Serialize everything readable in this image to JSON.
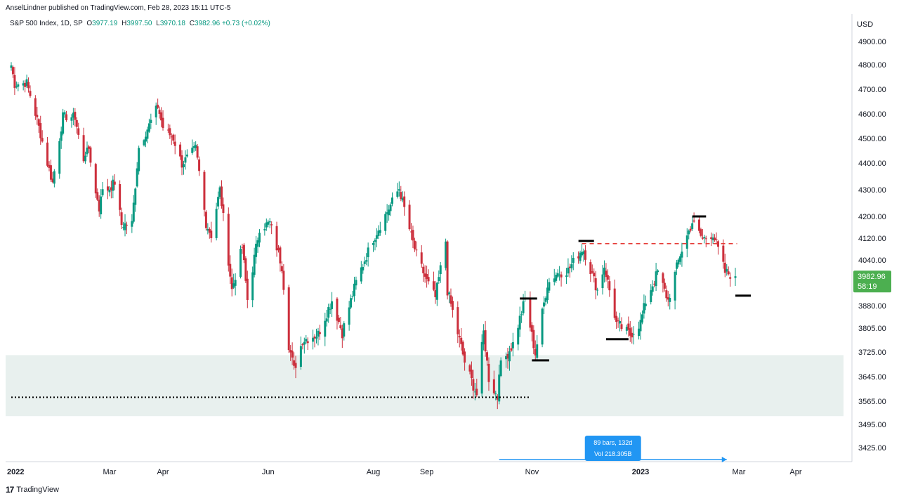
{
  "header": {
    "publisher_line": "AnselLindner published on TradingView.com, Feb 28, 2023 15:11 UTC-5"
  },
  "legend": {
    "symbol": "S&P 500 Index, 1D, SP",
    "o_label": "O",
    "o_value": "3977.19",
    "h_label": "H",
    "h_value": "3997.50",
    "l_label": "L",
    "l_value": "3970.18",
    "c_label": "C",
    "c_value": "3982.96",
    "change": "+0.73 (+0.02%)"
  },
  "footer": {
    "logo_text": "TradingView"
  },
  "colors": {
    "up": "#089981",
    "down": "#cc2f3c",
    "zone": "#e8f0ee",
    "price_tag": "#4caf50",
    "measure": "#2196f3",
    "dash_red": "#e53935"
  },
  "chart_data": {
    "type": "candlestick",
    "currency_label": "USD",
    "y_ticks": [
      "4900.00",
      "4800.00",
      "4700.00",
      "4600.00",
      "4500.00",
      "4400.00",
      "4300.00",
      "4200.00",
      "4120.00",
      "4040.00",
      "3880.00",
      "3805.00",
      "3725.00",
      "3645.00",
      "3565.00",
      "3495.00",
      "3425.00"
    ],
    "x_ticks": [
      {
        "label": "2022",
        "date": "2022-01-03",
        "bold": true
      },
      {
        "label": "Mar",
        "date": "2022-03-01"
      },
      {
        "label": "Apr",
        "date": "2022-04-01"
      },
      {
        "label": "Jun",
        "date": "2022-06-01"
      },
      {
        "label": "Aug",
        "date": "2022-08-01"
      },
      {
        "label": "Sep",
        "date": "2022-09-01"
      },
      {
        "label": "Nov",
        "date": "2022-11-01"
      },
      {
        "label": "2023",
        "date": "2023-01-03",
        "bold": true
      },
      {
        "label": "Mar",
        "date": "2023-03-01"
      },
      {
        "label": "Apr",
        "date": "2023-04-03"
      }
    ],
    "current_price": "3982.96",
    "countdown": "58:19",
    "measure": {
      "bars_text": "89 bars, 132d",
      "vol_text": "Vol 218.305B",
      "from": "2022-10-13",
      "to": "2023-02-22"
    },
    "support_zone": [
      3520,
      3715
    ],
    "dotted_level": {
      "value": 3578,
      "from": "2022-01-03",
      "to": "2022-10-31"
    },
    "red_dashed_level": {
      "value": 4100,
      "from": "2022-11-30",
      "to": "2023-02-28"
    },
    "marker_lines": [
      {
        "value": 3905,
        "from": "2022-10-25",
        "to": "2022-11-04"
      },
      {
        "value": 3698,
        "from": "2022-11-01",
        "to": "2022-11-11"
      },
      {
        "value": 4110,
        "from": "2022-11-28",
        "to": "2022-12-07"
      },
      {
        "value": 3768,
        "from": "2022-12-14",
        "to": "2022-12-27"
      },
      {
        "value": 4200,
        "from": "2023-02-02",
        "to": "2023-02-10"
      },
      {
        "value": 3915,
        "from": "2023-02-27",
        "to": "2023-03-08"
      }
    ],
    "close_path": [
      [
        "2022-01-03",
        4797
      ],
      [
        "2022-01-05",
        4720
      ],
      [
        "2022-01-12",
        4726
      ],
      [
        "2022-01-18",
        4575
      ],
      [
        "2022-01-24",
        4400
      ],
      [
        "2022-01-27",
        4326
      ],
      [
        "2022-02-02",
        4589
      ],
      [
        "2022-02-09",
        4587
      ],
      [
        "2022-02-14",
        4401
      ],
      [
        "2022-02-16",
        4475
      ],
      [
        "2022-02-23",
        4225
      ],
      [
        "2022-02-24",
        4288
      ],
      [
        "2022-03-01",
        4306
      ],
      [
        "2022-03-04",
        4329
      ],
      [
        "2022-03-08",
        4170
      ],
      [
        "2022-03-14",
        4173
      ],
      [
        "2022-03-18",
        4463
      ],
      [
        "2022-03-29",
        4631
      ],
      [
        "2022-04-01",
        4545
      ],
      [
        "2022-04-07",
        4500
      ],
      [
        "2022-04-12",
        4397
      ],
      [
        "2022-04-20",
        4460
      ],
      [
        "2022-04-26",
        4175
      ],
      [
        "2022-04-29",
        4131
      ],
      [
        "2022-05-04",
        4300
      ],
      [
        "2022-05-11",
        3935
      ],
      [
        "2022-05-17",
        4088
      ],
      [
        "2022-05-20",
        3901
      ],
      [
        "2022-05-27",
        4158
      ],
      [
        "2022-06-02",
        4176
      ],
      [
        "2022-06-09",
        4018
      ],
      [
        "2022-06-13",
        3750
      ],
      [
        "2022-06-16",
        3667
      ],
      [
        "2022-06-21",
        3765
      ],
      [
        "2022-06-30",
        3785
      ],
      [
        "2022-07-08",
        3899
      ],
      [
        "2022-07-14",
        3790
      ],
      [
        "2022-07-22",
        3962
      ],
      [
        "2022-08-01",
        4118
      ],
      [
        "2022-08-16",
        4305
      ],
      [
        "2022-08-23",
        4128
      ],
      [
        "2022-08-26",
        4058
      ],
      [
        "2022-09-01",
        3966
      ],
      [
        "2022-09-06",
        3908
      ],
      [
        "2022-09-12",
        4110
      ],
      [
        "2022-09-13",
        3932
      ],
      [
        "2022-09-23",
        3693
      ],
      [
        "2022-09-30",
        3586
      ],
      [
        "2022-10-04",
        3791
      ],
      [
        "2022-10-07",
        3640
      ],
      [
        "2022-10-12",
        3577
      ],
      [
        "2022-10-13",
        3670
      ],
      [
        "2022-10-21",
        3752
      ],
      [
        "2022-10-28",
        3901
      ],
      [
        "2022-11-03",
        3720
      ],
      [
        "2022-11-10",
        3956
      ],
      [
        "2022-11-15",
        3992
      ],
      [
        "2022-11-22",
        4004
      ],
      [
        "2022-11-30",
        4080
      ],
      [
        "2022-12-01",
        4076
      ],
      [
        "2022-12-09",
        3934
      ],
      [
        "2022-12-13",
        4019
      ],
      [
        "2022-12-20",
        3821
      ],
      [
        "2022-12-28",
        3783
      ],
      [
        "2023-01-03",
        3824
      ],
      [
        "2023-01-06",
        3895
      ],
      [
        "2023-01-13",
        3999
      ],
      [
        "2023-01-19",
        3898
      ],
      [
        "2023-01-26",
        4060
      ],
      [
        "2023-02-02",
        4179
      ],
      [
        "2023-02-08",
        4117
      ],
      [
        "2023-02-14",
        4136
      ],
      [
        "2023-02-17",
        4079
      ],
      [
        "2023-02-21",
        3997
      ],
      [
        "2023-02-27",
        3982.96
      ]
    ]
  }
}
